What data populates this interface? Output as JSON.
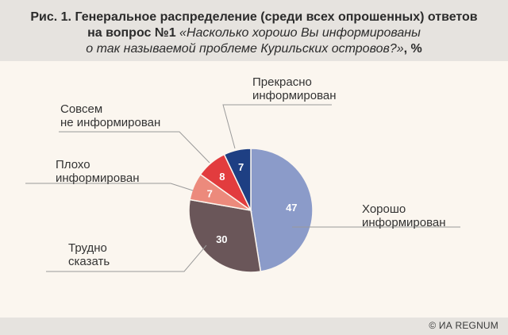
{
  "header": {
    "title_line1": "Рис. 1. Генеральное распределение (среди всех опрошенных) ответов",
    "title_line2_bold": "на вопрос №1 ",
    "title_line2_italic": "«Насколько хорошо Вы информированы",
    "title_line3_italic": "о так называемой проблеме Курильских островов?»",
    "title_line3_bold": ", %"
  },
  "footer": {
    "credit": "© ИА REGNUM"
  },
  "chart_data": {
    "type": "pie",
    "start": "top",
    "direction": "clockwise",
    "slices": [
      {
        "key": "good",
        "label_lines": [
          "Хорошо",
          "информирован"
        ],
        "value": 47,
        "color": "#8b9bc9"
      },
      {
        "key": "hard",
        "label_lines": [
          "Трудно",
          "сказать"
        ],
        "value": 30,
        "color": "#6a5659"
      },
      {
        "key": "poor",
        "label_lines": [
          "Плохо",
          "информирован"
        ],
        "value": 7,
        "color": "#ec8a7c"
      },
      {
        "key": "not",
        "label_lines": [
          "Совсем",
          "не информирован"
        ],
        "value": 8,
        "color": "#e23c3e"
      },
      {
        "key": "great",
        "label_lines": [
          "Прекрасно",
          "информирован"
        ],
        "value": 7,
        "color": "#1e3f83"
      }
    ]
  }
}
